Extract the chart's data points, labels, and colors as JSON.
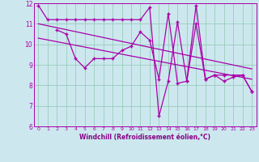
{
  "bg_color": "#cce8ee",
  "line_color": "#aa00aa",
  "grid_color": "#99ccbb",
  "xlabel": "Windchill (Refroidissement éolien,°C)",
  "xlabel_color": "#880088",
  "xlim": [
    -0.5,
    23.5
  ],
  "ylim": [
    6,
    12
  ],
  "yticks": [
    6,
    7,
    8,
    9,
    10,
    11,
    12
  ],
  "xticks": [
    0,
    1,
    2,
    3,
    4,
    5,
    6,
    7,
    8,
    9,
    10,
    11,
    12,
    13,
    14,
    15,
    16,
    17,
    18,
    19,
    20,
    21,
    22,
    23
  ],
  "series1_x": [
    0,
    1,
    2,
    3,
    4,
    5,
    6,
    7,
    8,
    9,
    10,
    11,
    12,
    13,
    14,
    15,
    16,
    17,
    18,
    19,
    20,
    21,
    22,
    23
  ],
  "series1_y": [
    11.9,
    11.2,
    11.2,
    11.2,
    11.2,
    11.2,
    11.2,
    11.2,
    11.2,
    11.2,
    11.2,
    11.2,
    11.8,
    6.5,
    8.2,
    11.1,
    8.2,
    11.9,
    8.3,
    8.5,
    8.5,
    8.5,
    8.5,
    7.7
  ],
  "series2_x": [
    2,
    3,
    4,
    5,
    6,
    7,
    8,
    9,
    10,
    11,
    12,
    13,
    14,
    15,
    16,
    17,
    18,
    19,
    20,
    21,
    22,
    23
  ],
  "series2_y": [
    10.7,
    10.5,
    9.3,
    8.85,
    9.3,
    9.3,
    9.3,
    9.7,
    9.9,
    10.6,
    10.2,
    8.3,
    11.5,
    8.1,
    8.2,
    11.0,
    8.3,
    8.5,
    8.2,
    8.4,
    8.5,
    7.7
  ],
  "trend1_x": [
    0,
    23
  ],
  "trend1_y": [
    11.0,
    8.8
  ],
  "trend2_x": [
    0,
    23
  ],
  "trend2_y": [
    10.3,
    8.3
  ]
}
